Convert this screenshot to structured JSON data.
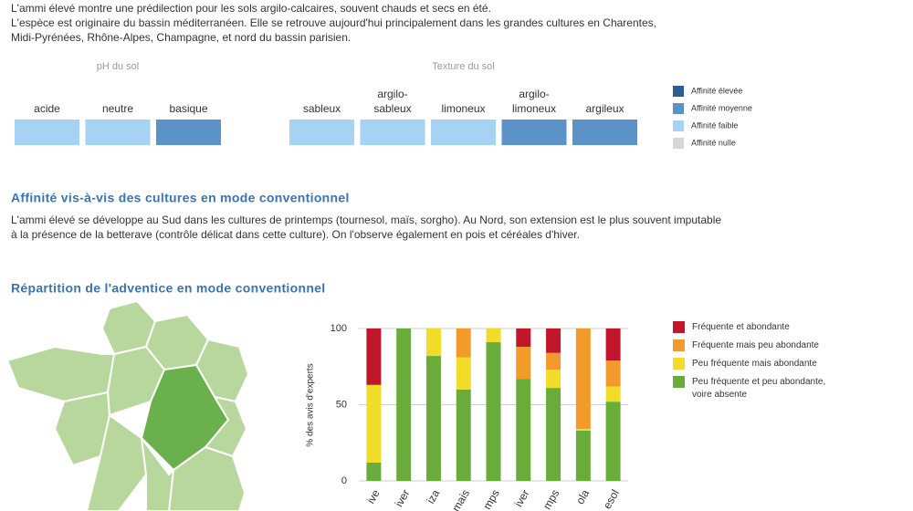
{
  "intro": [
    "L'ammi élevé montre une prédilection pour les sols argilo-calcaires, souvent chauds et secs en été.",
    "L'espèce est originaire du bassin méditerranéen. Elle se retrouve aujourd'hui principalement dans les grandes cultures en Charentes,",
    "Midi-Pyrénées, Rhône-Alpes, Champagne, et nord du bassin parisien."
  ],
  "soil": {
    "groups": [
      {
        "title": "pH du sol",
        "items": [
          {
            "label": [
              "acide"
            ],
            "color": "#a6d2f4"
          },
          {
            "label": [
              "neutre"
            ],
            "color": "#a6d2f4"
          },
          {
            "label": [
              "basique"
            ],
            "color": "#5b93c9"
          }
        ]
      },
      {
        "title": "Texture du sol",
        "items": [
          {
            "label": [
              "sableux"
            ],
            "color": "#a6d2f4"
          },
          {
            "label": [
              "argilo-",
              "sableux"
            ],
            "color": "#a6d2f4"
          },
          {
            "label": [
              "limoneux"
            ],
            "color": "#a6d2f4"
          },
          {
            "label": [
              "argilo-",
              "limoneux"
            ],
            "color": "#5b93c9"
          },
          {
            "label": [
              "argileux"
            ],
            "color": "#5b93c9"
          }
        ]
      }
    ],
    "legend": [
      {
        "label": "Affinité élevée",
        "color": "#2c5d93"
      },
      {
        "label": "Affinité moyenne",
        "color": "#5b93c9"
      },
      {
        "label": "Affinité faible",
        "color": "#a6d2f4"
      },
      {
        "label": "Affinité nulle",
        "color": "#d6d6d6"
      }
    ]
  },
  "cultures": {
    "heading": "Affinité vis-à-vis des cultures en mode conventionnel",
    "paragraph": [
      "L'ammi élevé se développe au Sud dans les cultures de printemps (tournesol, maïs, sorgho). Au Nord, son extension est le plus souvent imputable",
      "à la présence de la betterave (contrôle délicat dans cette culture). On l'observe également en pois et céréales d'hiver."
    ]
  },
  "repartition": {
    "heading": "Répartition de l'adventice en mode conventionnel"
  },
  "chart_data": {
    "type": "bar",
    "stacked": true,
    "y_label": "% des avis d'experts",
    "categories": [
      "ive",
      "iver",
      "iza",
      "mais",
      "mps",
      "iver",
      "mps",
      "ola",
      "esol"
    ],
    "series": [
      {
        "name": "Peu fréquente et peu abondante, voire absente",
        "color": "#6aac3a",
        "values": [
          12,
          100,
          82,
          60,
          91,
          67,
          61,
          33,
          52
        ]
      },
      {
        "name": "Peu fréquente mais abondante",
        "color": "#f2dc2a",
        "values": [
          51,
          0,
          18,
          21,
          9,
          0,
          12,
          1,
          10
        ]
      },
      {
        "name": "Fréquente mais peu abondante",
        "color": "#f39a2c",
        "values": [
          0,
          0,
          0,
          19,
          0,
          21,
          11,
          66,
          17
        ]
      },
      {
        "name": "Fréquente et abondante",
        "color": "#c0182a",
        "values": [
          37,
          0,
          0,
          0,
          0,
          12,
          16,
          0,
          21
        ]
      }
    ],
    "ylim": [
      0,
      100
    ],
    "yticks": [
      0,
      50,
      100
    ],
    "grid": true
  }
}
